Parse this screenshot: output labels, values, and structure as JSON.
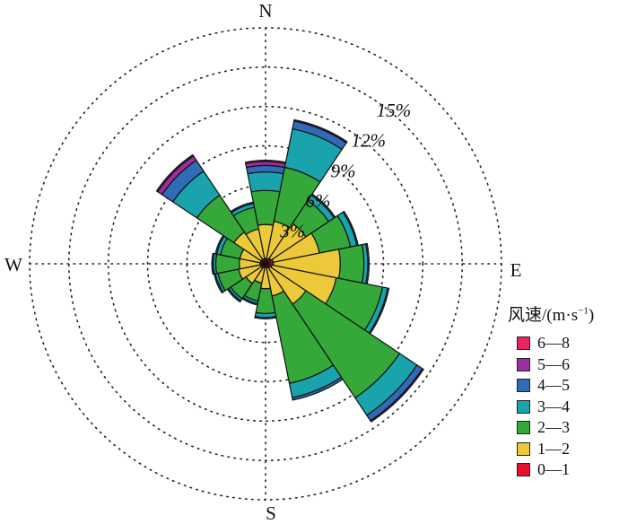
{
  "chart_data": {
    "type": "wind-rose",
    "directions": [
      "N",
      "E",
      "S",
      "W"
    ],
    "sectors": [
      "N",
      "NNE",
      "NE",
      "ENE",
      "E",
      "ESE",
      "SE",
      "SSE",
      "S",
      "SSW",
      "SW",
      "WSW",
      "W",
      "WNW",
      "NW",
      "NNW"
    ],
    "ring_labels": [
      "3%",
      "6%",
      "9%",
      "12%",
      "15%"
    ],
    "ring_values": [
      3,
      6,
      9,
      12,
      15
    ],
    "rlim": [
      0,
      18
    ],
    "legend_title": "风速/(m·s",
    "legend_title_sup": "−1",
    "legend_title_close": ")",
    "series": [
      {
        "name": "0—1",
        "color": "#e8112d",
        "values": [
          0.4,
          0.4,
          0.5,
          0.6,
          0.6,
          0.5,
          0.4,
          0.3,
          0.3,
          0.3,
          0.4,
          0.4,
          0.4,
          0.4,
          0.4,
          0.4
        ]
      },
      {
        "name": "1—2",
        "color": "#ecc93b",
        "values": [
          2.6,
          2.9,
          3.2,
          3.6,
          5.1,
          5.0,
          3.3,
          2.2,
          1.6,
          1.2,
          1.4,
          1.7,
          1.6,
          1.6,
          2.5,
          2.3
        ]
      },
      {
        "name": "2—3",
        "color": "#35a83a",
        "values": [
          2.6,
          4.2,
          2.1,
          2.4,
          1.8,
          3.6,
          8.6,
          6.8,
          1.9,
          1.4,
          1.4,
          1.6,
          1.8,
          1.5,
          3.4,
          1.7
        ]
      },
      {
        "name": "3—4",
        "color": "#1aa3ad",
        "values": [
          1.4,
          3.0,
          0.5,
          0.5,
          0.3,
          0.4,
          1.6,
          1.1,
          0.3,
          0.2,
          0.2,
          0.2,
          0.2,
          0.3,
          2.2,
          0.3
        ]
      },
      {
        "name": "4—5",
        "color": "#2f6bb6",
        "values": [
          0.5,
          0.6,
          0.1,
          0.1,
          0.1,
          0.1,
          0.5,
          0.2,
          0.1,
          0.1,
          0.1,
          0.1,
          0.1,
          0.1,
          1.0,
          0.1
        ]
      },
      {
        "name": "5—6",
        "color": "#9b2f9e",
        "values": [
          0.3,
          0.1,
          0,
          0,
          0,
          0,
          0.1,
          0,
          0,
          0,
          0,
          0,
          0,
          0,
          0.4,
          0
        ]
      },
      {
        "name": "6—8",
        "color": "#e4285e",
        "values": [
          0.1,
          0,
          0,
          0,
          0,
          0,
          0,
          0,
          0,
          0,
          0,
          0,
          0,
          0,
          0.1,
          0
        ]
      }
    ]
  }
}
